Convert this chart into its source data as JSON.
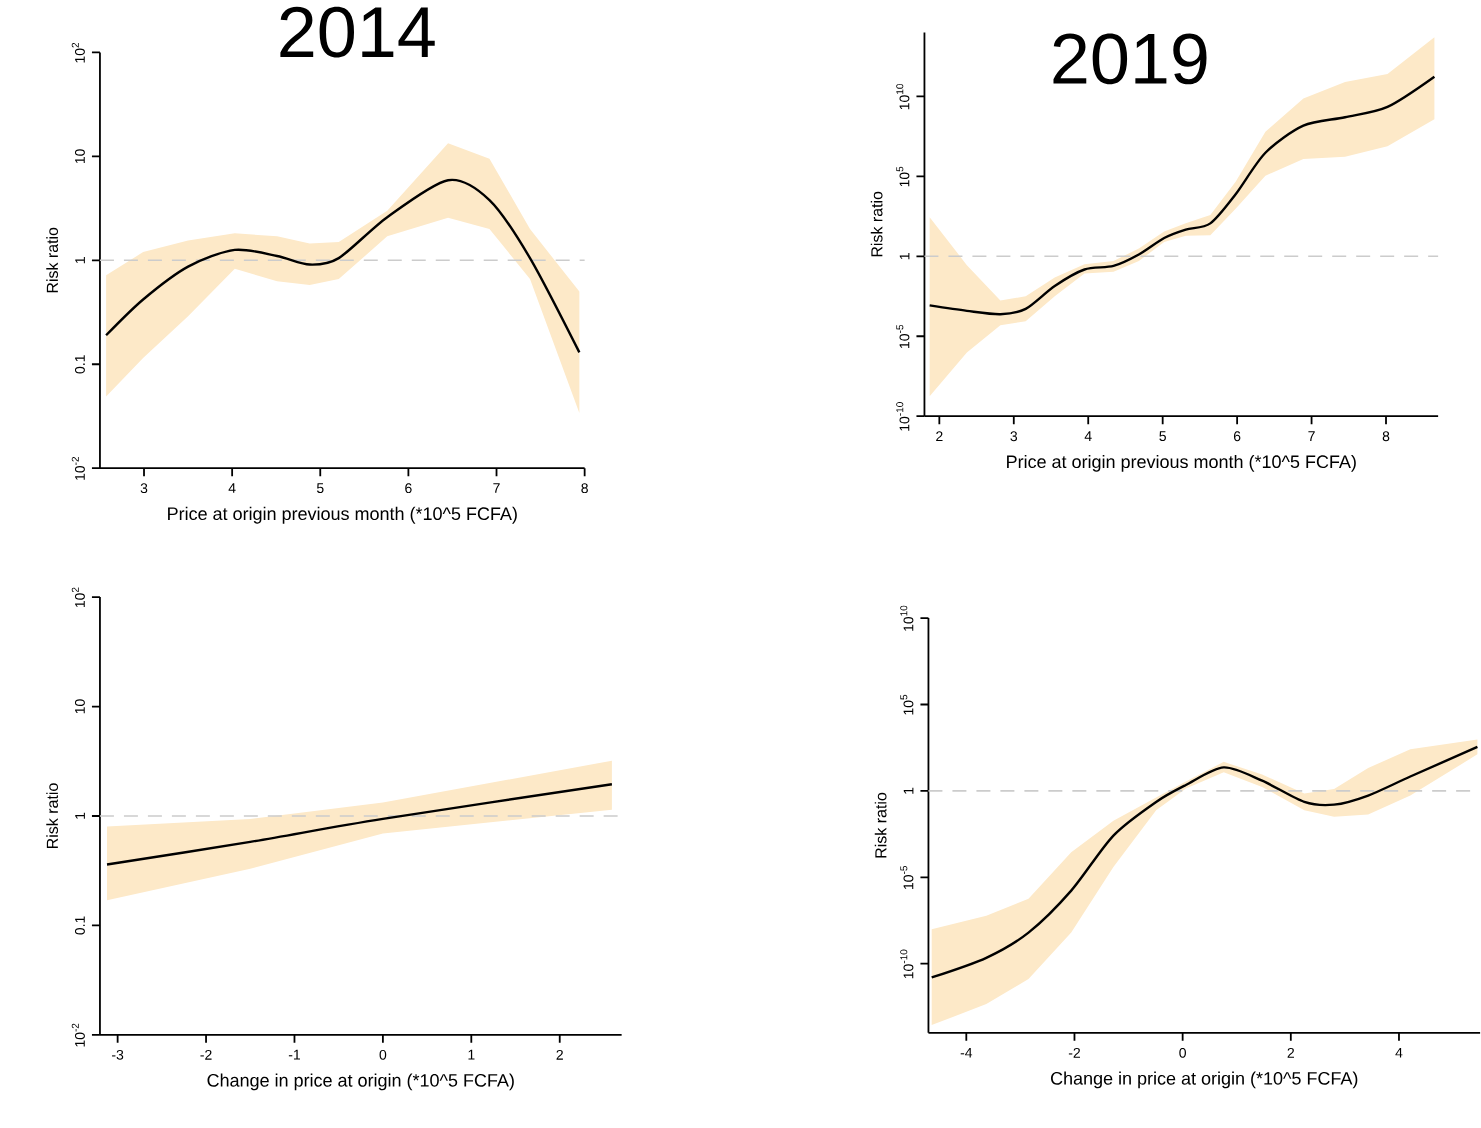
{
  "chart_data": [
    {
      "type": "line",
      "title": "2014",
      "xlabel": "Price at origin previous month (*10^5 FCFA)",
      "ylabel": "Risk ratio",
      "log": "y",
      "x": [
        2.57,
        2.99,
        3.5,
        4.03,
        4.51,
        4.88,
        5.21,
        5.76,
        6.45,
        6.92,
        7.38,
        7.94
      ],
      "series": [
        {
          "color": "#000000",
          "values": [
            0.19,
            0.42,
            0.87,
            1.26,
            1.1,
            0.91,
            1.05,
            2.6,
            5.9,
            3.8,
            1.05,
            0.13
          ],
          "upper": [
            0.72,
            1.2,
            1.55,
            1.82,
            1.7,
            1.45,
            1.5,
            3.0,
            13.4,
            9.5,
            2.0,
            0.5
          ],
          "lower": [
            0.049,
            0.115,
            0.29,
            0.83,
            0.63,
            0.58,
            0.66,
            1.7,
            2.57,
            2.0,
            0.66,
            0.034
          ]
        }
      ],
      "xlim": [
        2.5,
        8
      ],
      "ylim": [
        0.01,
        100
      ],
      "xticks": [
        3,
        4,
        5,
        6,
        7,
        8
      ],
      "yticks": [
        {
          "value": 0.01,
          "label": "10$^{-2}$"
        },
        0.1,
        1,
        10,
        {
          "value": 100,
          "label": "10$^{2}$"
        }
      ],
      "ref_lines": [
        {
          "axis": "y",
          "value": 1,
          "color": "#cccccc",
          "line_style": "dashed"
        }
      ]
    },
    {
      "type": "line",
      "title": "2019",
      "xlabel": "Price at origin previous month (*10^5 FCFA)",
      "ylabel": "Risk ratio",
      "log": "y",
      "x": [
        1.87,
        2.37,
        2.82,
        3.16,
        3.55,
        3.95,
        4.34,
        4.68,
        5.02,
        5.31,
        5.64,
        5.98,
        6.38,
        6.89,
        7.45,
        8.02,
        8.65
      ],
      "series": [
        {
          "color": "#000000",
          "values": [
            0.00085,
            0.00039,
            0.00024,
            0.00052,
            0.014,
            0.15,
            0.25,
            1.3,
            14,
            47,
            115,
            7600,
            3000000.0,
            150000000.0,
            500000000.0,
            2200000000.0,
            170000000000.0
          ],
          "upper": [
            280,
            0.28,
            0.0017,
            0.0032,
            0.047,
            0.32,
            0.51,
            3.1,
            35,
            115,
            380,
            46000.0,
            62000000.0,
            7400000000.0,
            79000000000.0,
            250000000000.0,
            50000000000000.0
          ],
          "lower": [
            1.8e-09,
            9.5e-07,
            4.8e-05,
            8.7e-05,
            0.0032,
            0.085,
            0.11,
            0.51,
            7.8,
            19,
            21,
            930,
            110000.0,
            1200000.0,
            1700000.0,
            7600000.0,
            370000000.0
          ]
        }
      ],
      "xlim": [
        1.8,
        8.7
      ],
      "ylim": [
        1e-10,
        100000000000000.0
      ],
      "xticks": [
        2,
        3,
        4,
        5,
        6,
        7,
        8
      ],
      "yticks": [
        {
          "value": 1e-10,
          "label": "10$^{-10}$"
        },
        {
          "value": 1e-05,
          "label": "10$^{-5}$"
        },
        1,
        {
          "value": 100000.0,
          "label": "10$^{5}$"
        },
        {
          "value": 10000000000.0,
          "label": "10$^{10}$"
        }
      ],
      "ref_lines": [
        {
          "axis": "y",
          "value": 1,
          "color": "#cccccc",
          "line_style": "dashed"
        }
      ]
    },
    {
      "type": "line",
      "xlabel": "Change in price at origin (*10^5 FCFA)",
      "ylabel": "Risk ratio",
      "log": "y",
      "x": [
        -3.12,
        -1.5,
        0,
        2.59
      ],
      "series": [
        {
          "color": "#000000",
          "values": [
            0.36,
            0.58,
            0.94,
            1.95
          ],
          "upper": [
            0.8,
            0.94,
            1.33,
            3.2
          ],
          "lower": [
            0.17,
            0.33,
            0.69,
            1.14
          ]
        }
      ],
      "xlim": [
        -3.2,
        2.7
      ],
      "ylim": [
        0.01,
        100
      ],
      "xticks": [
        -3,
        -2,
        -1,
        0,
        1,
        2
      ],
      "yticks": [
        {
          "value": 0.01,
          "label": "10$^{-2}$"
        },
        0.1,
        1,
        10,
        {
          "value": 100,
          "label": "10$^{2}$"
        }
      ],
      "ref_lines": [
        {
          "axis": "y",
          "value": 1,
          "color": "#cccccc",
          "line_style": "dashed"
        }
      ]
    },
    {
      "type": "line",
      "xlabel": "Change in price at origin (*10^5 FCFA)",
      "ylabel": "Risk ratio",
      "log": "y",
      "x": [
        -4.64,
        -3.63,
        -2.85,
        -2.06,
        -1.28,
        -0.49,
        0.06,
        0.76,
        1.47,
        2.25,
        2.8,
        3.43,
        4.21,
        5.45
      ],
      "series": [
        {
          "color": "#000000",
          "values": [
            1.6e-11,
            2.2e-10,
            6.3e-09,
            1.7e-06,
            0.0026,
            0.23,
            2.2,
            23,
            3.9,
            0.23,
            0.16,
            0.54,
            6.8,
            350
          ],
          "upper": [
            1e-08,
            6e-08,
            5.8e-07,
            0.00028,
            0.019,
            0.41,
            3.5,
            48,
            8.9,
            0.71,
            1.3,
            21,
            260,
            950
          ],
          "lower": [
            2.8e-14,
            4.6e-13,
            1.3e-11,
            6.3e-09,
            3.9e-05,
            0.076,
            1.4,
            12,
            1.7,
            0.076,
            0.032,
            0.043,
            0.54,
            130
          ]
        }
      ],
      "xlim": [
        -4.7,
        5.5
      ],
      "ylim": [
        1e-14,
        10000000000.0
      ],
      "xticks": [
        -4,
        -2,
        0,
        2,
        4
      ],
      "yticks": [
        {
          "value": 1e-10,
          "label": "10$^{-10}$"
        },
        {
          "value": 1e-05,
          "label": "10$^{-5}$"
        },
        1,
        {
          "value": 100000.0,
          "label": "10$^{5}$"
        },
        {
          "value": 10000000000.0,
          "label": "10$^{10}$"
        }
      ],
      "ref_lines": [
        {
          "axis": "y",
          "value": 1,
          "color": "#cccccc",
          "line_style": "dashed"
        }
      ]
    }
  ]
}
